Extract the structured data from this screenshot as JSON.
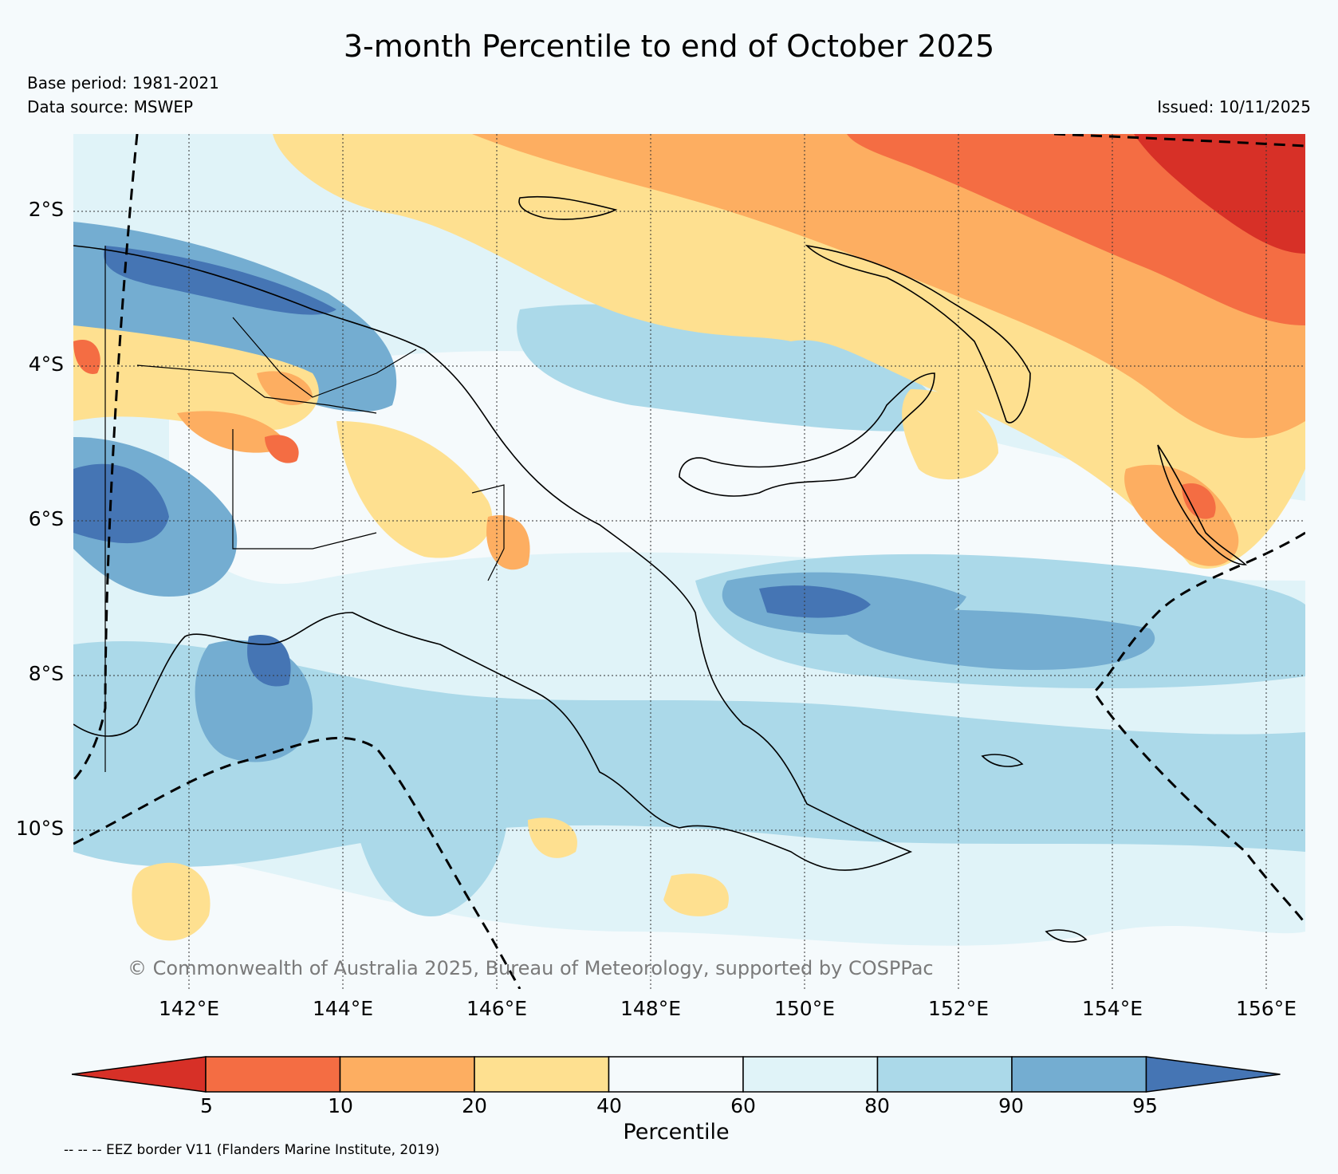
{
  "title": "3-month Percentile to end of October 2025",
  "base_period": "Base period: 1981-2021",
  "data_source": "Data source: MSWEP",
  "issued": "Issued: 10/11/2025",
  "copyright": "© Commonwealth of Australia 2025, Bureau of Meteorology, supported by COSPPac",
  "eez_note": "-- -- -- EEZ border V11 (Flanders Marine Institute, 2019)",
  "lat_labels": [
    "2°S",
    "4°S",
    "6°S",
    "8°S",
    "10°S"
  ],
  "lon_labels": [
    "142°E",
    "144°E",
    "146°E",
    "148°E",
    "150°E",
    "152°E",
    "154°E",
    "156°E"
  ],
  "colorbar": {
    "label": "Percentile",
    "ticks": [
      "5",
      "10",
      "20",
      "40",
      "60",
      "80",
      "90",
      "95"
    ],
    "colors": [
      "#d73027",
      "#f46d43",
      "#fdae61",
      "#fee090",
      "#f5fafc",
      "#e0f3f8",
      "#abd9e9",
      "#74add1",
      "#4575b4"
    ]
  }
}
